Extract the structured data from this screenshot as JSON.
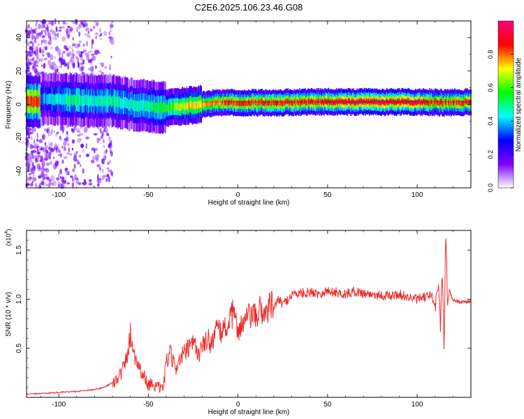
{
  "figure": {
    "title": "C2E6.2025.106.23.46.G08"
  },
  "chart_data": [
    {
      "type": "heatmap",
      "title": "C2E6.2025.106.23.46.G08",
      "xlabel": "Height of straight line (km)",
      "ylabel": "Frequency (Hz)",
      "xlim": [
        -118,
        130
      ],
      "ylim": [
        -50,
        50
      ],
      "xticks": [
        -100,
        -50,
        0,
        50,
        100
      ],
      "yticks": [
        -40,
        -20,
        0,
        20,
        40
      ],
      "colorbar": {
        "label": "Normalized spectral amplitude",
        "range": [
          0,
          1
        ],
        "ticks": [
          0.0,
          0.2,
          0.4,
          0.6,
          0.8
        ],
        "tick_labels": [
          "0.0",
          "0.2",
          "0.4",
          "0.6",
          "0.8"
        ],
        "colormap": [
          "#ffffff",
          "#8000ff",
          "#0000ff",
          "#00ffff",
          "#00ff00",
          "#ffff00",
          "#ff0000",
          "#ff0080"
        ]
      },
      "ridge": [
        {
          "x": -110,
          "f": 3.5,
          "amp": 0.35
        },
        {
          "x": -100,
          "f": 3.0,
          "amp": 0.45
        },
        {
          "x": -90,
          "f": 2.5,
          "amp": 0.5
        },
        {
          "x": -80,
          "f": 2.0,
          "amp": 0.45
        },
        {
          "x": -70,
          "f": 2.0,
          "amp": 0.5
        },
        {
          "x": -60,
          "f": 0.0,
          "amp": 0.45
        },
        {
          "x": -50,
          "f": -1.0,
          "amp": 0.5
        },
        {
          "x": -40,
          "f": -2.0,
          "amp": 0.55
        },
        {
          "x": -30,
          "f": -1.0,
          "amp": 0.7
        },
        {
          "x": -20,
          "f": 0.0,
          "amp": 0.75
        },
        {
          "x": -10,
          "f": 1.0,
          "amp": 0.8
        },
        {
          "x": 0,
          "f": 1.0,
          "amp": 0.85
        },
        {
          "x": 20,
          "f": 1.0,
          "amp": 0.85
        },
        {
          "x": 40,
          "f": 1.5,
          "amp": 0.85
        },
        {
          "x": 60,
          "f": 1.5,
          "amp": 0.9
        },
        {
          "x": 80,
          "f": 1.5,
          "amp": 0.9
        },
        {
          "x": 100,
          "f": 1.5,
          "amp": 0.9
        },
        {
          "x": 115,
          "f": 1.0,
          "amp": 0.8
        },
        {
          "x": 130,
          "f": 1.5,
          "amp": 0.85
        }
      ]
    },
    {
      "type": "line",
      "xlabel": "Height of straight line (km)",
      "ylabel": "SNR (10 * v/v)",
      "y_multiplier_label": "(x10",
      "y_multiplier_exp": "4",
      "xlim": [
        -118,
        130
      ],
      "ylim": [
        0,
        1.7
      ],
      "xticks": [
        -100,
        -50,
        0,
        50,
        100
      ],
      "yticks": [
        0.5,
        1.0,
        1.5
      ],
      "ytick_labels": [
        "0.5",
        "1.0",
        "1.5"
      ],
      "color": "#ee2b2b",
      "series": [
        {
          "values_x": [
            -118,
            -110,
            -100,
            -90,
            -80,
            -75,
            -70,
            -65,
            -62,
            -60,
            -58,
            -55,
            -52,
            -50,
            -48,
            -45,
            -42,
            -40,
            -38,
            -35,
            -32,
            -30,
            -27,
            -25,
            -22,
            -20,
            -17,
            -15,
            -12,
            -10,
            -8,
            -5,
            -3,
            0,
            3,
            5,
            8,
            10,
            12,
            15,
            18,
            20,
            22,
            25,
            28,
            30,
            35,
            40,
            45,
            50,
            55,
            60,
            65,
            70,
            75,
            80,
            85,
            90,
            95,
            100,
            105,
            108,
            110,
            112,
            113,
            114,
            115,
            116,
            117,
            118,
            120,
            125,
            130
          ],
          "values_y": [
            0.03,
            0.04,
            0.05,
            0.06,
            0.08,
            0.1,
            0.15,
            0.25,
            0.4,
            0.65,
            0.45,
            0.3,
            0.2,
            0.12,
            0.15,
            0.1,
            0.08,
            0.35,
            0.45,
            0.3,
            0.4,
            0.45,
            0.5,
            0.55,
            0.45,
            0.5,
            0.6,
            0.55,
            0.7,
            0.65,
            0.7,
            0.75,
            0.85,
            0.7,
            0.75,
            0.8,
            0.85,
            0.8,
            0.9,
            0.85,
            0.95,
            0.9,
            1.0,
            0.95,
            1.0,
            1.05,
            1.06,
            1.07,
            1.06,
            1.08,
            1.07,
            1.05,
            1.08,
            1.06,
            1.05,
            1.04,
            1.03,
            1.05,
            1.02,
            1.0,
            1.02,
            1.05,
            0.9,
            1.2,
            0.7,
            1.3,
            0.5,
            1.7,
            0.9,
            1.1,
            0.98,
            0.97,
            0.98
          ]
        }
      ]
    }
  ]
}
